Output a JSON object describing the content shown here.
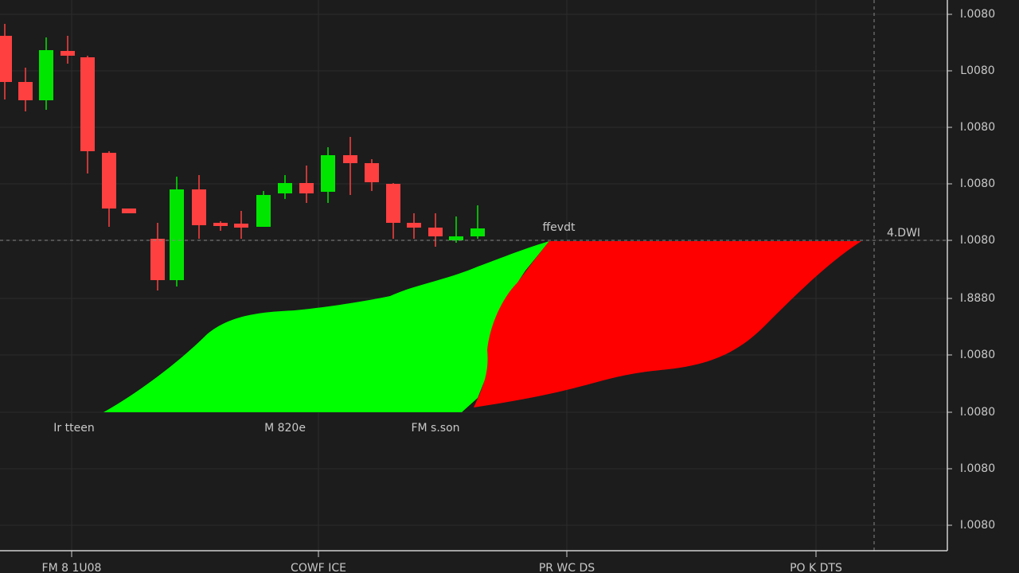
{
  "price_axis": {
    "labels": [
      "I.0080",
      "L0080",
      "I.0080",
      "I.0080",
      "I.0080",
      "I.8880",
      "I.0080",
      "I.0080",
      "I.0080",
      "I.0080"
    ]
  },
  "time_axis": {
    "labels": [
      "FM 8 1U08",
      "COWF ICE",
      "PR WC DS",
      "PO K DTS"
    ]
  },
  "annotations": {
    "area_labels": [
      "Ir tteen",
      "M 820e",
      "FM s.son"
    ],
    "level_label": "ffevdt",
    "price_tag": "4.DWI"
  }
}
